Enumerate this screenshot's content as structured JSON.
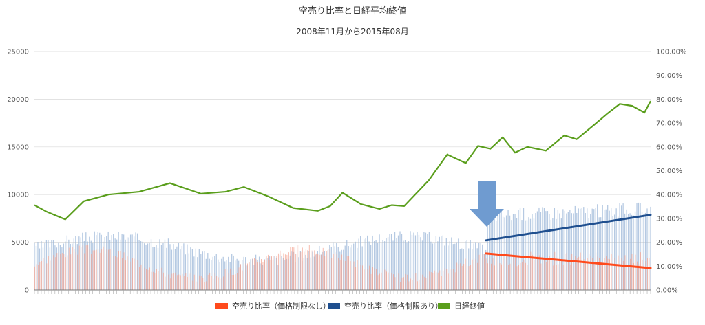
{
  "chart_data": {
    "type": "line",
    "title": "空売り比率と日経平均終値",
    "subtitle": "2008年11月から2015年08月",
    "y_left": {
      "min": 0,
      "max": 25000,
      "ticks": [
        "0",
        "5000",
        "10000",
        "15000",
        "20000",
        "25000"
      ]
    },
    "y_right": {
      "min": 0,
      "max": 100,
      "ticks": [
        "0.00%",
        "10.00%",
        "20.00%",
        "30.00%",
        "40.00%",
        "50.00%",
        "60.00%",
        "70.00%",
        "80.00%",
        "90.00%",
        "100.00%"
      ]
    },
    "x_range": [
      0,
      1
    ],
    "grid": true,
    "legend_position": "bottom",
    "series": [
      {
        "name": "空売り比率（価格制限なし）",
        "color": "#ff4a1c",
        "axis": "right",
        "trend": {
          "x": [
            0.733,
            1.0
          ],
          "y": [
            15.3,
            9.2
          ]
        },
        "values": []
      },
      {
        "name": "空売り比率（価格制限あり）",
        "color": "#1f4f8f",
        "axis": "right",
        "trend": {
          "x": [
            0.733,
            1.0
          ],
          "y": [
            20.8,
            31.5
          ]
        },
        "values": []
      },
      {
        "name": "日経終値",
        "color": "#5a9e1c",
        "axis": "left",
        "x": [
          0.0,
          0.02,
          0.05,
          0.08,
          0.12,
          0.17,
          0.22,
          0.27,
          0.31,
          0.34,
          0.38,
          0.42,
          0.46,
          0.48,
          0.5,
          0.53,
          0.56,
          0.58,
          0.6,
          0.64,
          0.67,
          0.7,
          0.72,
          0.74,
          0.76,
          0.78,
          0.8,
          0.83,
          0.86,
          0.88,
          0.91,
          0.93,
          0.95,
          0.97,
          0.99,
          1.0
        ],
        "y": [
          8900,
          8200,
          7400,
          9300,
          10000,
          10300,
          11200,
          10100,
          10300,
          10800,
          9800,
          8600,
          8300,
          8800,
          10200,
          9000,
          8500,
          8900,
          8800,
          11500,
          14200,
          13300,
          15100,
          14800,
          16000,
          14400,
          15000,
          14600,
          16200,
          15800,
          17400,
          18500,
          19500,
          19300,
          18600,
          19800
        ]
      }
    ]
  }
}
